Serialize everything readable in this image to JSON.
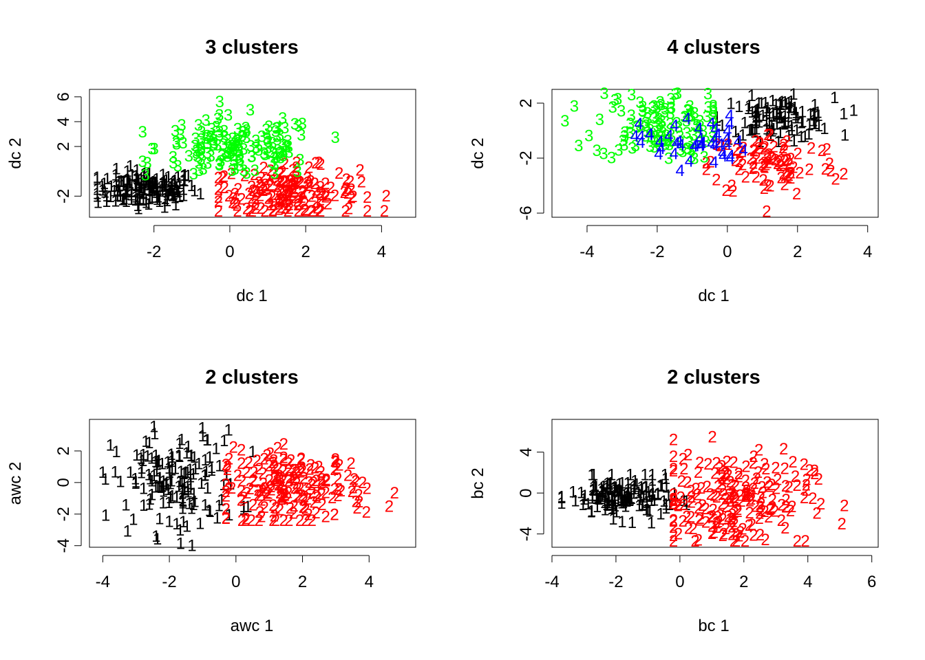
{
  "cluster_colors": {
    "1": "#000000",
    "2": "#ff0000",
    "3": "#00ff00",
    "4": "#0000ff"
  },
  "chart_data": [
    {
      "type": "scatter",
      "title": "3  clusters",
      "xlabel": "dc 1",
      "ylabel": "dc 2",
      "xlim": [
        -3.7,
        4.9
      ],
      "ylim": [
        -3.7,
        6.6
      ],
      "xticks": [
        -2,
        0,
        2,
        4
      ],
      "yticks": [
        -2,
        2,
        4,
        6
      ],
      "cluster_ranges": [
        {
          "label": "1",
          "count": 160,
          "x": [
            -3.5,
            -0.3
          ],
          "y": [
            -3.0,
            0.5
          ],
          "c": [
            -2.2,
            -1.4
          ]
        },
        {
          "label": "2",
          "count": 170,
          "x": [
            -0.3,
            4.2
          ],
          "y": [
            -3.2,
            1.7
          ],
          "c": [
            1.5,
            -1.7
          ]
        },
        {
          "label": "3",
          "count": 150,
          "x": [
            -2.3,
            2.8
          ],
          "y": [
            -0.3,
            5.6
          ],
          "c": [
            0.2,
            1.9
          ]
        }
      ]
    },
    {
      "type": "scatter",
      "title": "4  clusters",
      "xlabel": "dc 1",
      "ylabel": "dc 2",
      "xlim": [
        -5.0,
        4.3
      ],
      "ylim": [
        -6.3,
        3.0
      ],
      "xticks": [
        -4,
        -2,
        0,
        2,
        4
      ],
      "yticks": [
        -6,
        -2,
        2
      ],
      "cluster_ranges": [
        {
          "label": "1",
          "count": 110,
          "x": [
            -0.3,
            3.6
          ],
          "y": [
            -0.8,
            2.7
          ],
          "c": [
            1.4,
            0.9
          ]
        },
        {
          "label": "2",
          "count": 90,
          "x": [
            -0.6,
            3.9
          ],
          "y": [
            -6.1,
            -0.3
          ],
          "c": [
            1.3,
            -2.4
          ]
        },
        {
          "label": "3",
          "count": 120,
          "x": [
            -4.7,
            -0.4
          ],
          "y": [
            -3.3,
            2.7
          ],
          "c": [
            -2.0,
            0.4
          ]
        },
        {
          "label": "4",
          "count": 45,
          "x": [
            -2.7,
            0.9
          ],
          "y": [
            -3.3,
            1.2
          ],
          "c": [
            -1.0,
            -0.8
          ]
        }
      ]
    },
    {
      "type": "scatter",
      "title": "2  clusters",
      "xlabel": "awc 1",
      "ylabel": "awc 2",
      "xlim": [
        -4.4,
        5.4
      ],
      "ylim": [
        -4.1,
        4.0
      ],
      "xticks": [
        -4,
        -2,
        0,
        2,
        4
      ],
      "yticks": [
        -4,
        -2,
        0,
        2
      ],
      "cluster_ranges": [
        {
          "label": "1",
          "count": 150,
          "x": [
            -4.0,
            0.5
          ],
          "y": [
            -4.0,
            3.7
          ],
          "c": [
            -1.8,
            0.0
          ]
        },
        {
          "label": "2",
          "count": 190,
          "x": [
            -0.3,
            5.0
          ],
          "y": [
            -2.4,
            3.0
          ],
          "c": [
            1.7,
            -0.3
          ]
        }
      ]
    },
    {
      "type": "scatter",
      "title": "2  clusters",
      "xlabel": "bc 1",
      "ylabel": "bc 2",
      "xlim": [
        -4.0,
        6.2
      ],
      "ylim": [
        -5.3,
        7.2
      ],
      "xticks": [
        -4,
        -2,
        0,
        2,
        4,
        6
      ],
      "yticks": [
        -4,
        0,
        4
      ],
      "cluster_ranges": [
        {
          "label": "1",
          "count": 150,
          "x": [
            -3.7,
            0.2
          ],
          "y": [
            -3.0,
            1.8
          ],
          "c": [
            -1.8,
            -0.4
          ]
        },
        {
          "label": "2",
          "count": 200,
          "x": [
            -0.2,
            5.7
          ],
          "y": [
            -4.7,
            6.4
          ],
          "c": [
            1.6,
            -0.6
          ]
        }
      ]
    }
  ]
}
